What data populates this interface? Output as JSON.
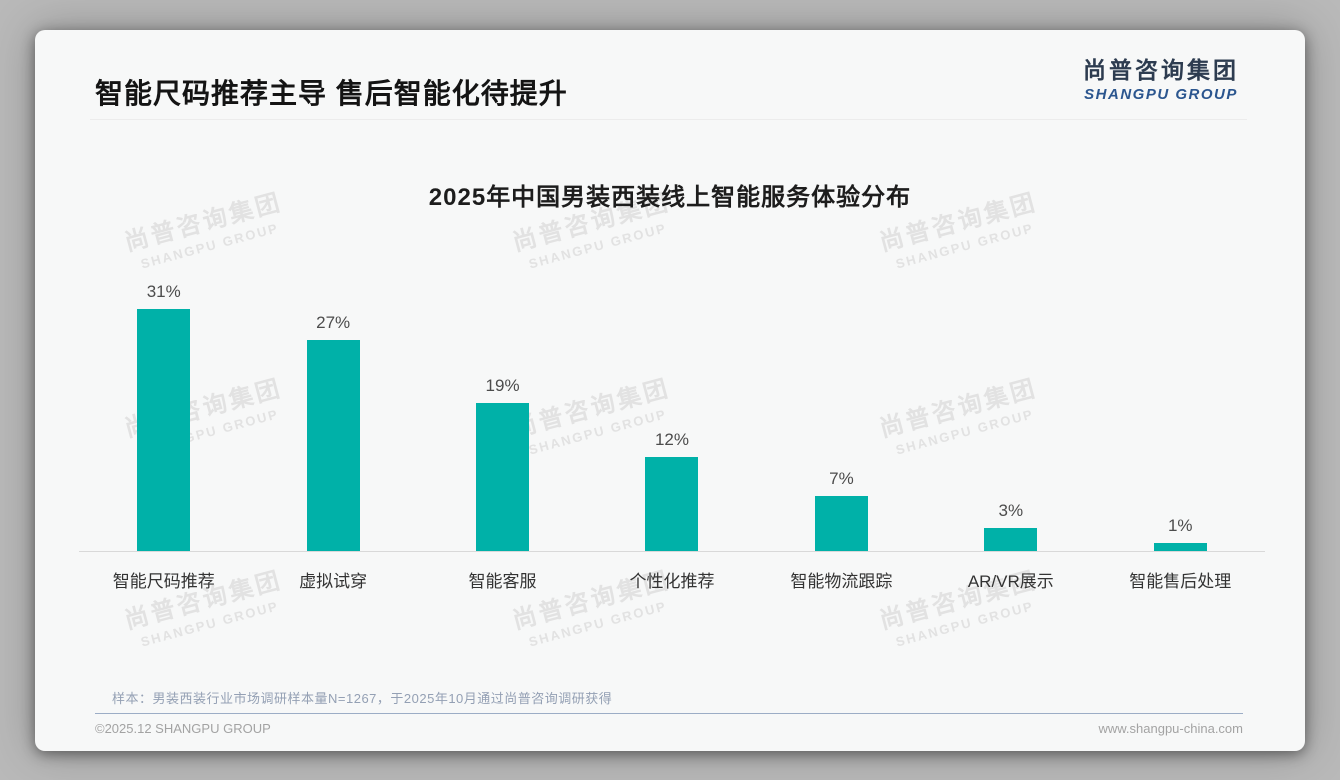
{
  "header": {
    "title": "智能尺码推荐主导 售后智能化待提升",
    "logo": {
      "chinese": "尚普咨询集团",
      "english": "SHANGPU GROUP"
    }
  },
  "watermark": {
    "line1": "尚普咨询集团",
    "line2": "SHANGPU GROUP"
  },
  "chart_data": {
    "type": "bar",
    "title": "2025年中国男装西装线上智能服务体验分布",
    "categories": [
      "智能尺码推荐",
      "虚拟试穿",
      "智能客服",
      "个性化推荐",
      "智能物流跟踪",
      "AR/VR展示",
      "智能售后处理"
    ],
    "values": [
      31,
      27,
      19,
      12,
      7,
      3,
      1
    ],
    "unit": "%",
    "value_labels": [
      "31%",
      "27%",
      "19%",
      "12%",
      "7%",
      "3%",
      "1%"
    ],
    "bar_color": "#00b1a8",
    "xlabel": "",
    "ylabel": "",
    "ylim": [
      0,
      35
    ],
    "grid": false,
    "legend": false
  },
  "footnote": {
    "text": "样本：男装西装行业市场调研样本量N=1267，于2025年10月通过尚普咨询调研获得"
  },
  "footer": {
    "copyright": "©2025.12 SHANGPU GROUP",
    "website": "www.shangpu-china.com"
  },
  "colors": {
    "accent_teal": "#00b1a8",
    "logo_chinese": "#2d3c50",
    "logo_english_blue": "#2b568f",
    "note_slate": "#94a0b4",
    "footer_gray": "#a3a3a3"
  }
}
